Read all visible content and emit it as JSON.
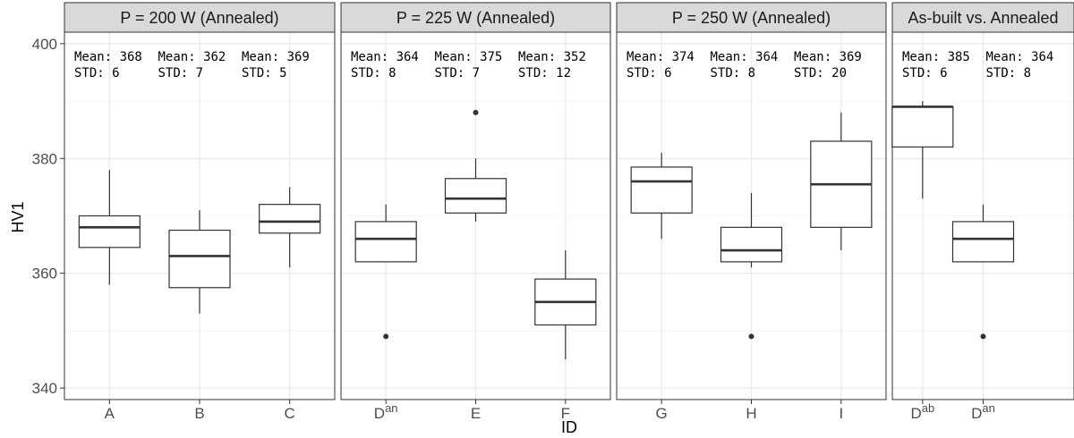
{
  "chart_data": {
    "type": "boxplot",
    "xlabel": "ID",
    "ylabel": "HV1",
    "ylim": [
      338,
      402
    ],
    "yticks": [
      340,
      360,
      380,
      400
    ],
    "grid": true,
    "colors": {
      "strip_fill": "#d9d9d9",
      "box_line": "#333333",
      "grid_major": "#ebebeb",
      "panel_border": "#333333"
    },
    "panels": [
      {
        "title": "P = 200 W (Annealed)",
        "boxes": [
          {
            "label": "A",
            "sup": "",
            "min": 358,
            "q1": 364.5,
            "median": 368,
            "q3": 370,
            "max": 378,
            "outliers": [],
            "mean_text": "Mean: 368",
            "std_text": "STD: 6"
          },
          {
            "label": "B",
            "sup": "",
            "min": 353,
            "q1": 357.5,
            "median": 363,
            "q3": 367.5,
            "max": 371,
            "outliers": [],
            "mean_text": "Mean: 362",
            "std_text": "STD: 7"
          },
          {
            "label": "C",
            "sup": "",
            "min": 361,
            "q1": 367,
            "median": 369,
            "q3": 372,
            "max": 375,
            "outliers": [],
            "mean_text": "Mean: 369",
            "std_text": "STD: 5"
          }
        ]
      },
      {
        "title": "P = 225 W (Annealed)",
        "boxes": [
          {
            "label": "D",
            "sup": "an",
            "min": 362,
            "q1": 362,
            "median": 366,
            "q3": 369,
            "max": 372,
            "outliers": [
              349
            ],
            "mean_text": "Mean: 364",
            "std_text": "STD: 8"
          },
          {
            "label": "E",
            "sup": "",
            "min": 369,
            "q1": 370.5,
            "median": 373,
            "q3": 376.5,
            "max": 380,
            "outliers": [
              388
            ],
            "mean_text": "Mean: 375",
            "std_text": "STD: 7"
          },
          {
            "label": "F",
            "sup": "",
            "min": 345,
            "q1": 351,
            "median": 355,
            "q3": 359,
            "max": 364,
            "outliers": [],
            "mean_text": "Mean: 352",
            "std_text": "STD: 12"
          }
        ]
      },
      {
        "title": "P = 250 W (Annealed)",
        "boxes": [
          {
            "label": "G",
            "sup": "",
            "min": 366,
            "q1": 370.5,
            "median": 376,
            "q3": 378.5,
            "max": 381,
            "outliers": [],
            "mean_text": "Mean: 374",
            "std_text": "STD: 6"
          },
          {
            "label": "H",
            "sup": "",
            "min": 361,
            "q1": 362,
            "median": 364,
            "q3": 368,
            "max": 374,
            "outliers": [
              349
            ],
            "mean_text": "Mean: 364",
            "std_text": "STD: 8"
          },
          {
            "label": "I",
            "sup": "",
            "min": 364,
            "q1": 368,
            "median": 375.5,
            "q3": 383,
            "max": 388,
            "outliers": [],
            "mean_text": "Mean: 369",
            "std_text": "STD: 20"
          }
        ]
      },
      {
        "title": "As-built vs. Annealed",
        "boxes": [
          {
            "label": "D",
            "sup": "ab",
            "min": 373,
            "q1": 382,
            "median": 389,
            "q3": 389,
            "max": 390,
            "outliers": [],
            "mean_text": "Mean: 385",
            "std_text": "STD: 6"
          },
          {
            "label": "D",
            "sup": "an",
            "min": 362,
            "q1": 362,
            "median": 366,
            "q3": 369,
            "max": 372,
            "outliers": [
              349
            ],
            "mean_text": "Mean: 364",
            "std_text": "STD: 8"
          }
        ]
      }
    ]
  }
}
